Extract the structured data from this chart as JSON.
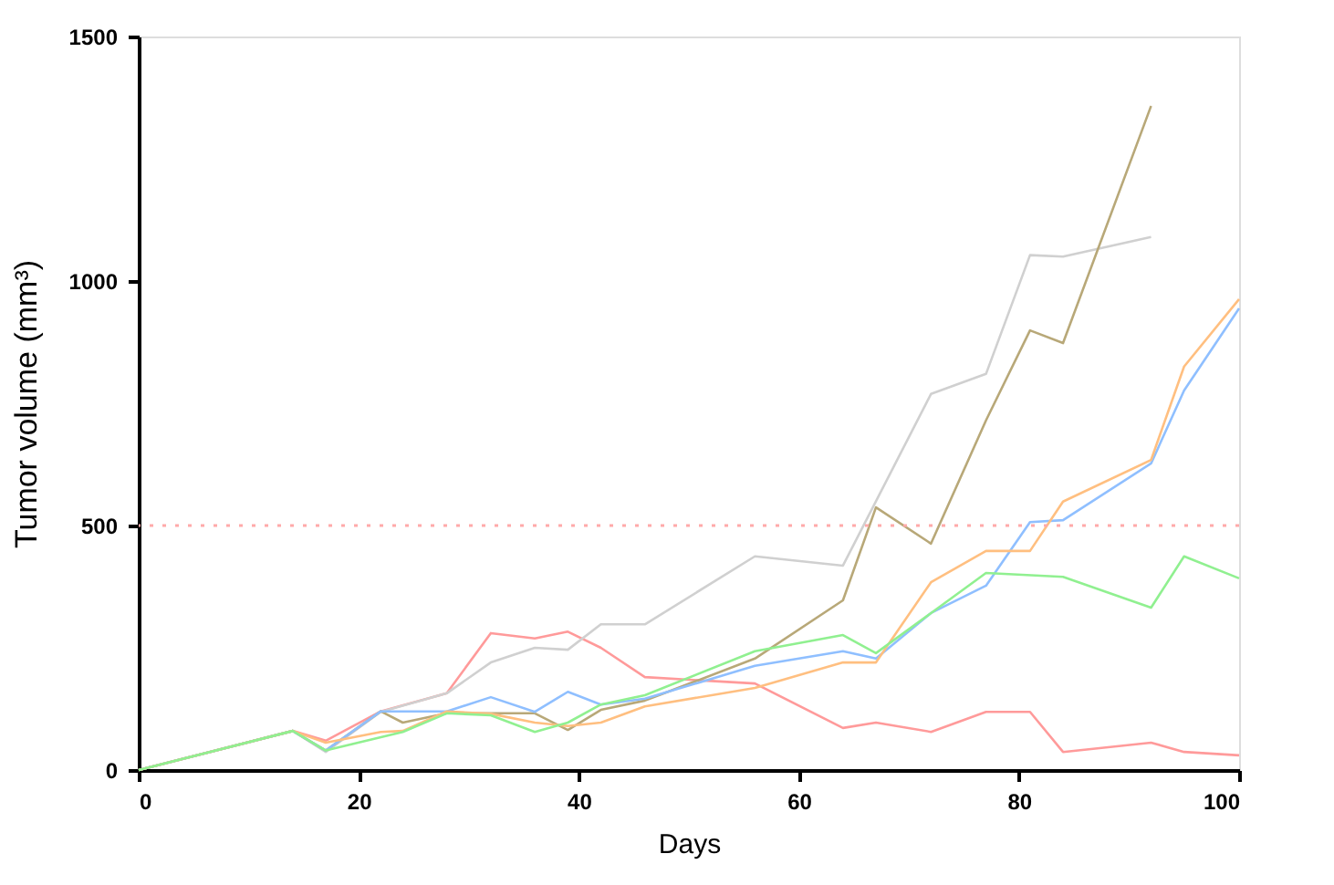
{
  "chart_data": {
    "type": "line",
    "xlabel": "Days",
    "ylabel": "Tumor volume (mm³)",
    "xlim": [
      0,
      100
    ],
    "xticks": [
      0,
      20,
      40,
      60,
      80,
      100
    ],
    "ylim": [
      0,
      1500
    ],
    "yticks": [
      0,
      500,
      1000,
      1500
    ],
    "grid": false,
    "legend": false,
    "marker": "none",
    "line_style": "solid",
    "ref_lines": [
      {
        "axis": "y",
        "value": 500,
        "label": null,
        "color": "#ffaaaa",
        "line_style": "dotted"
      }
    ],
    "series": [
      {
        "color": "#ff9a9a",
        "x": [
          0,
          14,
          17,
          22,
          28,
          32,
          36,
          39,
          42,
          46,
          56,
          64,
          67,
          72,
          77,
          81,
          84,
          92,
          95,
          100
        ],
        "values": [
          0,
          80,
          60,
          120,
          157,
          280,
          269,
          283,
          250,
          190,
          177,
          86,
          97,
          78,
          119,
          119,
          37,
          56,
          37,
          30
        ]
      },
      {
        "color": "#d0d0d0",
        "x": [
          0,
          14,
          17,
          22,
          28,
          32,
          36,
          39,
          42,
          46,
          56,
          64,
          72,
          77,
          81,
          84,
          92
        ],
        "values": [
          0,
          80,
          37,
          119,
          157,
          220,
          250,
          246,
          298,
          298,
          437,
          418,
          769,
          810,
          1053,
          1050,
          1090
        ]
      },
      {
        "color": "#b8a878",
        "x": [
          0,
          14,
          17,
          22,
          24,
          28,
          36,
          39,
          42,
          46,
          56,
          64,
          67,
          72,
          77,
          81,
          84,
          92
        ],
        "values": [
          0,
          80,
          40,
          120,
          97,
          116,
          116,
          82,
          123,
          142,
          228,
          347,
          537,
          463,
          715,
          899,
          873,
          1358
        ]
      },
      {
        "color": "#8fbfff",
        "x": [
          0,
          14,
          17,
          22,
          28,
          32,
          36,
          39,
          42,
          46,
          56,
          64,
          67,
          72,
          77,
          81,
          84,
          92,
          95,
          100
        ],
        "values": [
          0,
          80,
          40,
          120,
          120,
          149,
          119,
          160,
          134,
          146,
          213,
          243,
          228,
          321,
          377,
          507,
          511,
          627,
          776,
          944
        ]
      },
      {
        "color": "#ffbf80",
        "x": [
          0,
          14,
          17,
          22,
          24,
          28,
          32,
          36,
          39,
          42,
          46,
          56,
          64,
          67,
          72,
          77,
          81,
          84,
          92,
          95,
          100
        ],
        "values": [
          0,
          80,
          56,
          78,
          80,
          120,
          115,
          97,
          90,
          97,
          130,
          168,
          220,
          220,
          384,
          448,
          448,
          549,
          634,
          825,
          963
        ]
      },
      {
        "color": "#90f090",
        "x": [
          0,
          14,
          17,
          24,
          28,
          32,
          36,
          39,
          42,
          46,
          56,
          64,
          67,
          72,
          77,
          84,
          92,
          95,
          100
        ],
        "values": [
          0,
          80,
          40,
          78,
          116,
          112,
          78,
          97,
          134,
          153,
          243,
          276,
          239,
          321,
          403,
          395,
          332,
          437,
          392
        ]
      }
    ]
  }
}
